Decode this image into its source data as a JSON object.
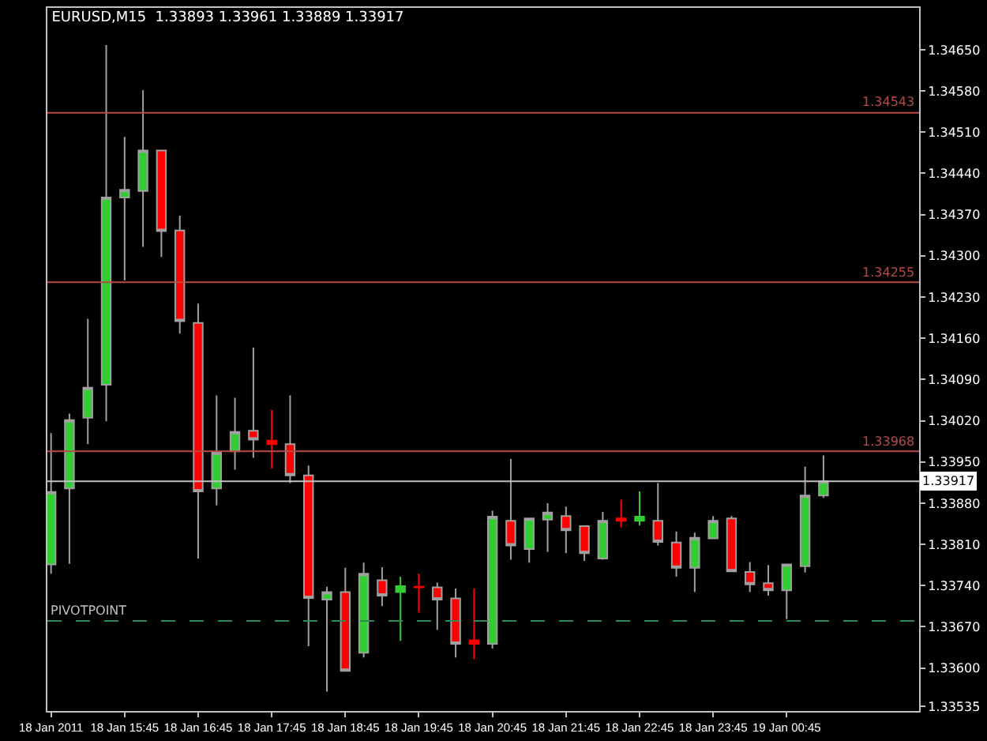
{
  "chart_data": {
    "type": "candlestick",
    "title": "EURUSD,M15  1.33893 1.33961 1.33889 1.33917",
    "x": [
      "2011-01-18T14:45",
      "2011-01-18T15:00",
      "2011-01-18T15:15",
      "2011-01-18T15:30",
      "2011-01-18T15:45",
      "2011-01-18T16:00",
      "2011-01-18T16:15",
      "2011-01-18T16:30",
      "2011-01-18T16:45",
      "2011-01-18T17:00",
      "2011-01-18T17:15",
      "2011-01-18T17:30",
      "2011-01-18T17:45",
      "2011-01-18T18:00",
      "2011-01-18T18:15",
      "2011-01-18T18:30",
      "2011-01-18T18:45",
      "2011-01-18T19:00",
      "2011-01-18T19:15",
      "2011-01-18T19:30",
      "2011-01-18T19:45",
      "2011-01-18T20:00",
      "2011-01-18T20:15",
      "2011-01-18T20:30",
      "2011-01-18T20:45",
      "2011-01-18T21:00",
      "2011-01-18T21:15",
      "2011-01-18T21:30",
      "2011-01-18T21:45",
      "2011-01-18T22:00",
      "2011-01-18T22:15",
      "2011-01-18T22:30",
      "2011-01-18T22:45",
      "2011-01-18T23:00",
      "2011-01-18T23:15",
      "2011-01-18T23:30",
      "2011-01-18T23:45",
      "2011-01-19T00:00",
      "2011-01-19T00:15",
      "2011-01-19T00:30",
      "2011-01-19T00:45",
      "2011-01-19T01:00",
      "2011-01-19T01:15"
    ],
    "ohlc": [
      [
        1.33776,
        1.33999,
        1.3376,
        1.33899
      ],
      [
        1.33905,
        1.34032,
        1.33777,
        1.34021
      ],
      [
        1.34025,
        1.34193,
        1.3398,
        1.34076
      ],
      [
        1.34081,
        1.34658,
        1.34019,
        1.34399
      ],
      [
        1.34399,
        1.34502,
        1.34258,
        1.34412
      ],
      [
        1.3441,
        1.34581,
        1.34315,
        1.34479
      ],
      [
        1.34479,
        1.34479,
        1.34298,
        1.34342
      ],
      [
        1.34343,
        1.34368,
        1.34168,
        1.34189
      ],
      [
        1.34186,
        1.34219,
        1.33786,
        1.339
      ],
      [
        1.33905,
        1.34063,
        1.33876,
        1.33966
      ],
      [
        1.33968,
        1.34059,
        1.33937,
        1.34001
      ],
      [
        1.34003,
        1.34144,
        1.33957,
        1.33988
      ],
      [
        1.33986,
        1.34038,
        1.33939,
        1.3398
      ],
      [
        1.3398,
        1.34063,
        1.33914,
        1.33927
      ],
      [
        1.33927,
        1.33944,
        1.33637,
        1.33719
      ],
      [
        1.33716,
        1.33738,
        1.3356,
        1.33729
      ],
      [
        1.33729,
        1.3377,
        1.33595,
        1.33595
      ],
      [
        1.33626,
        1.33779,
        1.33618,
        1.3376
      ],
      [
        1.33749,
        1.33771,
        1.33705,
        1.33723
      ],
      [
        1.33729,
        1.33755,
        1.33646,
        1.33739
      ],
      [
        1.33738,
        1.3376,
        1.33694,
        1.33737
      ],
      [
        1.33737,
        1.33745,
        1.33665,
        1.33716
      ],
      [
        1.33718,
        1.33735,
        1.33618,
        1.33641
      ],
      [
        1.33647,
        1.33735,
        1.33615,
        1.33641
      ],
      [
        1.33641,
        1.33867,
        1.33633,
        1.33857
      ],
      [
        1.3385,
        1.33955,
        1.33784,
        1.33808
      ],
      [
        1.33802,
        1.33854,
        1.33779,
        1.33854
      ],
      [
        1.33852,
        1.3388,
        1.33797,
        1.33864
      ],
      [
        1.33858,
        1.33874,
        1.33795,
        1.33834
      ],
      [
        1.33841,
        1.33841,
        1.33782,
        1.33795
      ],
      [
        1.33786,
        1.33865,
        1.33784,
        1.3385
      ],
      [
        1.33854,
        1.33886,
        1.33839,
        1.3385
      ],
      [
        1.3385,
        1.339,
        1.33842,
        1.33857
      ],
      [
        1.3385,
        1.33914,
        1.33808,
        1.33814
      ],
      [
        1.33813,
        1.33832,
        1.33755,
        1.3377
      ],
      [
        1.3377,
        1.3383,
        1.33729,
        1.33821
      ],
      [
        1.3382,
        1.33858,
        1.3382,
        1.3385
      ],
      [
        1.33854,
        1.33858,
        1.33764,
        1.33764
      ],
      [
        1.33763,
        1.3378,
        1.33729,
        1.33742
      ],
      [
        1.33744,
        1.33775,
        1.33723,
        1.33732
      ],
      [
        1.33732,
        1.33776,
        1.33683,
        1.33776
      ],
      [
        1.33773,
        1.33942,
        1.33762,
        1.33893
      ],
      [
        1.33893,
        1.33961,
        1.33889,
        1.33917
      ]
    ],
    "colors": [
      "#32cd32",
      "#32cd32",
      "#32cd32",
      "#32cd32",
      "#32cd32",
      "#32cd32",
      "#ff0000",
      "#ff0000",
      "#ff0000",
      "#32cd32",
      "#32cd32",
      "#ff0000",
      "#ff0000",
      "#ff0000",
      "#ff0000",
      "#32cd32",
      "#ff0000",
      "#32cd32",
      "#ff0000",
      "#32cd32",
      "#ff0000",
      "#ff0000",
      "#ff0000",
      "#ff0000",
      "#32cd32",
      "#ff0000",
      "#32cd32",
      "#32cd32",
      "#ff0000",
      "#ff0000",
      "#32cd32",
      "#ff0000",
      "#32cd32",
      "#ff0000",
      "#ff0000",
      "#32cd32",
      "#32cd32",
      "#ff0000",
      "#ff0000",
      "#ff0000",
      "#32cd32",
      "#32cd32",
      "#32cd32"
    ],
    "xlim": [
      "2011-01-18T14:42",
      "2011-01-19T02:33"
    ],
    "xticks": [
      {
        "value": "2011-01-18T14:45",
        "label": "18 Jan 2011"
      },
      {
        "value": "2011-01-18T15:45",
        "label": "18 Jan 15:45"
      },
      {
        "value": "2011-01-18T16:45",
        "label": "18 Jan 16:45"
      },
      {
        "value": "2011-01-18T17:45",
        "label": "18 Jan 17:45"
      },
      {
        "value": "2011-01-18T18:45",
        "label": "18 Jan 18:45"
      },
      {
        "value": "2011-01-18T19:45",
        "label": "18 Jan 19:45"
      },
      {
        "value": "2011-01-18T20:45",
        "label": "18 Jan 20:45"
      },
      {
        "value": "2011-01-18T21:45",
        "label": "18 Jan 21:45"
      },
      {
        "value": "2011-01-18T22:45",
        "label": "18 Jan 22:45"
      },
      {
        "value": "2011-01-18T23:45",
        "label": "18 Jan 23:45"
      },
      {
        "value": "2011-01-19T00:45",
        "label": "19 Jan 00:45"
      }
    ],
    "ylim": [
      1.33527,
      1.34721
    ],
    "yticks": [
      {
        "value": 1.3465,
        "label": "1.34650"
      },
      {
        "value": 1.3458,
        "label": "1.34580"
      },
      {
        "value": 1.3451,
        "label": "1.34510"
      },
      {
        "value": 1.3444,
        "label": "1.34440"
      },
      {
        "value": 1.3437,
        "label": "1.34370"
      },
      {
        "value": 1.343,
        "label": "1.34300"
      },
      {
        "value": 1.3423,
        "label": "1.34230"
      },
      {
        "value": 1.3416,
        "label": "1.34160"
      },
      {
        "value": 1.3409,
        "label": "1.34090"
      },
      {
        "value": 1.3402,
        "label": "1.34020"
      },
      {
        "value": 1.3395,
        "label": "1.33950"
      },
      {
        "value": 1.3388,
        "label": "1.33880"
      },
      {
        "value": 1.3381,
        "label": "1.33810"
      },
      {
        "value": 1.3374,
        "label": "1.33740"
      },
      {
        "value": 1.3367,
        "label": "1.33670"
      },
      {
        "value": 1.336,
        "label": "1.33600"
      },
      {
        "value": 1.33535,
        "label": "1.33535"
      }
    ],
    "ref_lines": [
      {
        "axis": "y",
        "value": 1.34543,
        "label": "1.34543",
        "color": "#b84a4a",
        "line_style": "solid"
      },
      {
        "axis": "y",
        "value": 1.34255,
        "label": "1.34255",
        "color": "#b84a4a",
        "line_style": "solid"
      },
      {
        "axis": "y",
        "value": 1.33968,
        "label": "1.33968",
        "color": "#b84a4a",
        "line_style": "solid"
      },
      {
        "axis": "y",
        "value": 1.33917,
        "label": "1.33917",
        "color": "#c0c0c0",
        "line_style": "solid"
      },
      {
        "axis": "y",
        "value": 1.3368,
        "label": "PIVOTPOINT",
        "color": "#2e8b57",
        "line_style": "dashed"
      }
    ],
    "grid": false
  }
}
